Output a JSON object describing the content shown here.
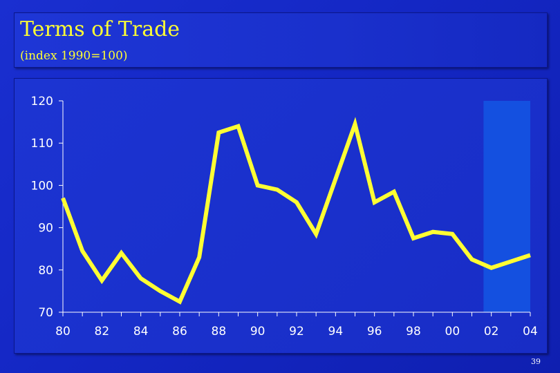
{
  "header": {
    "title": "Terms of Trade",
    "subtitle": "(index 1990=100)"
  },
  "page_number": "39",
  "colors": {
    "line": "#ffff33",
    "highlight": "#1450e0",
    "axis": "#ffffff",
    "text": "#ffffff"
  },
  "chart_data": {
    "type": "line",
    "title": "Terms of Trade",
    "subtitle": "(index 1990=100)",
    "xlabel": "",
    "ylabel": "",
    "x": [
      1980,
      1981,
      1982,
      1983,
      1984,
      1985,
      1986,
      1987,
      1988,
      1989,
      1990,
      1991,
      1992,
      1993,
      1994,
      1995,
      1996,
      1997,
      1998,
      1999,
      2000,
      2001,
      2002,
      2003,
      2004
    ],
    "series": [
      {
        "values": [
          97,
          84.5,
          77.5,
          84,
          78,
          75,
          72.5,
          83,
          112.5,
          114,
          100,
          99,
          96,
          88.5,
          101.5,
          114.5,
          96,
          98.5,
          87.5,
          89,
          88.5,
          82.5,
          80.5,
          82,
          83.5
        ]
      }
    ],
    "xlim": [
      1980,
      2004
    ],
    "ylim": [
      70,
      120
    ],
    "yticks": [
      70,
      80,
      90,
      100,
      110,
      120
    ],
    "xticks": [
      1980,
      1982,
      1984,
      1986,
      1988,
      1990,
      1992,
      1994,
      1996,
      1998,
      2000,
      2002,
      2004
    ],
    "xtick_labels": [
      "80",
      "82",
      "84",
      "86",
      "88",
      "90",
      "92",
      "94",
      "96",
      "98",
      "00",
      "02",
      "04"
    ],
    "ytick_labels": [
      "70",
      "80",
      "90",
      "100",
      "110",
      "120"
    ],
    "highlight_range": [
      2001.6,
      2004
    ],
    "grid": false
  }
}
